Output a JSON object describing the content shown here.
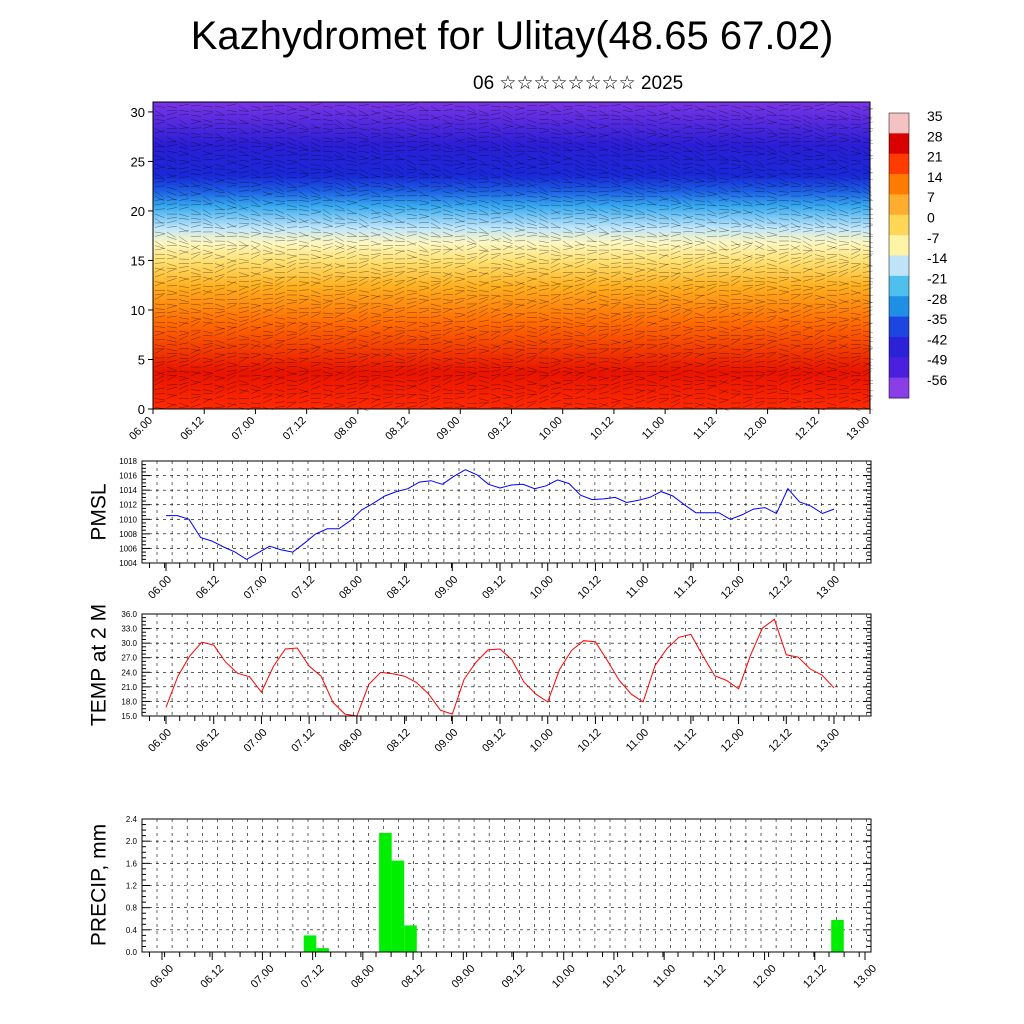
{
  "title": "Kazhydromet for Ulitay(48.65 67.02)",
  "subtitle": "06 ☆☆☆☆☆☆☆☆ 2025",
  "chart_data": [
    {
      "type": "heatmap",
      "description_role": "cross-section of temperature with wind barbs over height",
      "x_tick_labels": [
        "06.00",
        "06.12",
        "07.00",
        "07.12",
        "08.00",
        "08.12",
        "09.00",
        "09.12",
        "10.00",
        "10.12",
        "11.00",
        "11.12",
        "12.00",
        "12.12",
        "13.00"
      ],
      "y_ticks": [
        0,
        5,
        10,
        15,
        20,
        25,
        30
      ],
      "ylim": [
        0,
        31
      ],
      "colorbar_labels": [
        "35",
        "28",
        "21",
        "14",
        "7",
        "0",
        "-7",
        "-14",
        "-21",
        "-28",
        "-35",
        "-42",
        "-49",
        "-56"
      ],
      "colorbar_colors": [
        "#f4c2c2",
        "#d90000",
        "#ff3b00",
        "#ff7a00",
        "#ffad2e",
        "#ffd655",
        "#fff3a5",
        "#bfe3f7",
        "#4fc0ee",
        "#1f8fe6",
        "#1d46e0",
        "#2b22d8",
        "#4a1fdd",
        "#8a3ee8"
      ]
    },
    {
      "type": "line",
      "ylabel": "PMSL",
      "ylim": [
        1004,
        1018
      ],
      "y_ticks": [
        "1004",
        "1006",
        "1008",
        "1010",
        "1012",
        "1014",
        "1016",
        "1018"
      ],
      "x_tick_labels": [
        "06.00",
        "06.12",
        "07.00",
        "07.12",
        "08.00",
        "08.12",
        "09.00",
        "09.12",
        "10.00",
        "10.12",
        "11.00",
        "11.12",
        "12.00",
        "12.12",
        "13.00"
      ],
      "color": "#0000ff",
      "values": [
        1010.5,
        1010.5,
        1010.0,
        1007.5,
        1007.0,
        1006.2,
        1005.5,
        1004.5,
        1005.4,
        1006.3,
        1005.8,
        1005.5,
        1006.7,
        1008.0,
        1008.7,
        1008.7,
        1009.8,
        1011.3,
        1012.2,
        1013.2,
        1013.8,
        1014.2,
        1015.1,
        1015.3,
        1014.8,
        1015.9,
        1016.8,
        1016.1,
        1014.8,
        1014.3,
        1014.7,
        1014.8,
        1014.2,
        1014.6,
        1015.4,
        1014.9,
        1013.3,
        1012.7,
        1012.8,
        1013.0,
        1012.3,
        1012.6,
        1013.0,
        1013.8,
        1013.2,
        1012.0,
        1010.9,
        1010.9,
        1010.9,
        1010.0,
        1010.6,
        1011.4,
        1011.6,
        1010.8,
        1014.2,
        1012.4,
        1011.8,
        1010.8,
        1011.4
      ]
    },
    {
      "type": "line",
      "ylabel": "TEMP at 2 M",
      "ylim": [
        15.0,
        36.0
      ],
      "y_ticks": [
        "15.0",
        "18.0",
        "21.0",
        "24.0",
        "27.0",
        "30.0",
        "33.0",
        "36.0"
      ],
      "x_tick_labels": [
        "06.00",
        "06.12",
        "07.00",
        "07.12",
        "08.00",
        "08.12",
        "09.00",
        "09.12",
        "10.00",
        "10.12",
        "11.00",
        "11.12",
        "12.00",
        "12.12",
        "13.00"
      ],
      "color": "#ff0000",
      "values": [
        16.8,
        23.2,
        27.4,
        30.2,
        29.6,
        26.1,
        23.8,
        23.1,
        19.9,
        25.2,
        28.8,
        29.0,
        25.3,
        23.2,
        17.8,
        15.4,
        15.0,
        21.5,
        24.0,
        23.7,
        23.2,
        21.9,
        19.6,
        16.2,
        15.4,
        22.6,
        26.1,
        28.6,
        28.8,
        26.6,
        22.0,
        19.5,
        17.9,
        24.6,
        28.5,
        30.5,
        30.3,
        26.4,
        22.3,
        19.5,
        17.9,
        25.4,
        28.9,
        31.2,
        31.8,
        27.4,
        23.3,
        22.3,
        20.6,
        27.5,
        33.1,
        34.9,
        27.6,
        27.1,
        24.7,
        23.4,
        20.8
      ]
    },
    {
      "type": "bar",
      "ylabel": "PRECIP, mm",
      "ylim": [
        0.0,
        2.4
      ],
      "y_ticks": [
        "0.0",
        "0.4",
        "0.8",
        "1.2",
        "1.6",
        "2.0",
        "2.4"
      ],
      "x_tick_labels": [
        "06.00",
        "06.12",
        "07.00",
        "07.12",
        "08.00",
        "08.12",
        "09.00",
        "09.12",
        "10.00",
        "10.12",
        "11.00",
        "11.12",
        "12.00",
        "12.12",
        "13.00"
      ],
      "color": "#00ee00",
      "bars": [
        {
          "slot": 8,
          "value": 0.01
        },
        {
          "slot": 12,
          "value": 0.3
        },
        {
          "slot": 13,
          "value": 0.07
        },
        {
          "slot": 18,
          "value": 2.15
        },
        {
          "slot": 19,
          "value": 1.65
        },
        {
          "slot": 20,
          "value": 0.48
        },
        {
          "slot": 54,
          "value": 0.58
        }
      ]
    }
  ]
}
